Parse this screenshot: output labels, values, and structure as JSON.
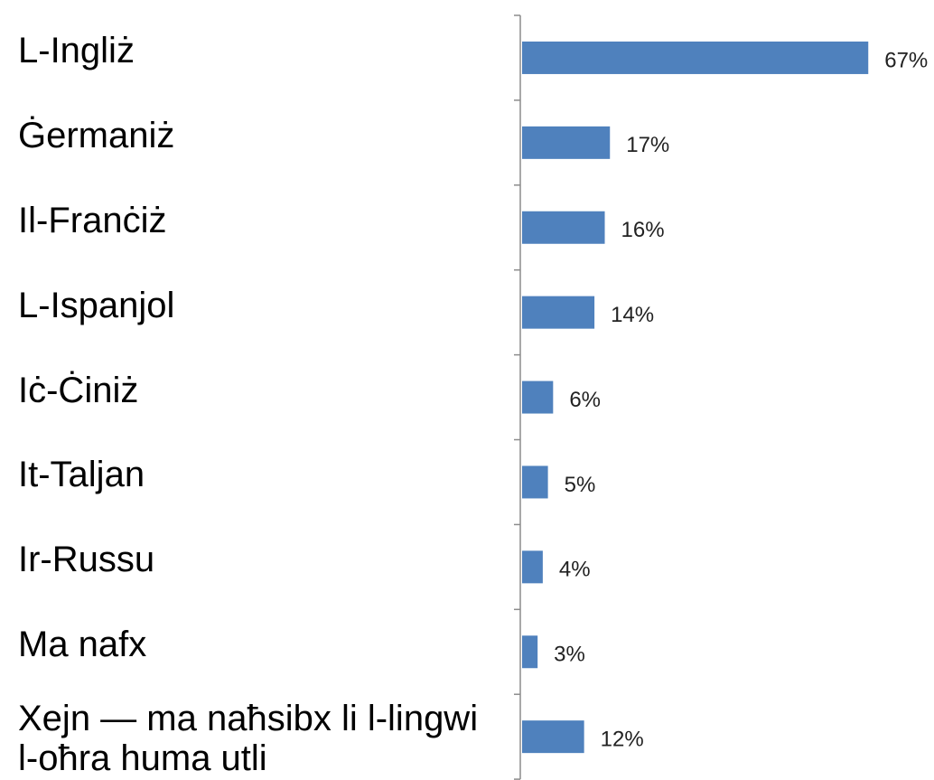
{
  "chart_data": {
    "type": "barh",
    "categories": [
      "L-Ingliż",
      "Ġermaniż",
      "Il-Franċiż",
      "L-Ispanjol",
      "Iċ-Ċiniż",
      "It-Taljan",
      "Ir-Russu",
      "Ma nafx",
      "Xejn — ma naħsibx li l-lingwi l-oħra huma utli"
    ],
    "values": [
      67,
      17,
      16,
      14,
      6,
      5,
      4,
      3,
      12
    ],
    "value_labels": [
      "67%",
      "17%",
      "16%",
      "14%",
      "6%",
      "5%",
      "4%",
      "3%",
      "12%"
    ],
    "color": "#4f81bd"
  }
}
